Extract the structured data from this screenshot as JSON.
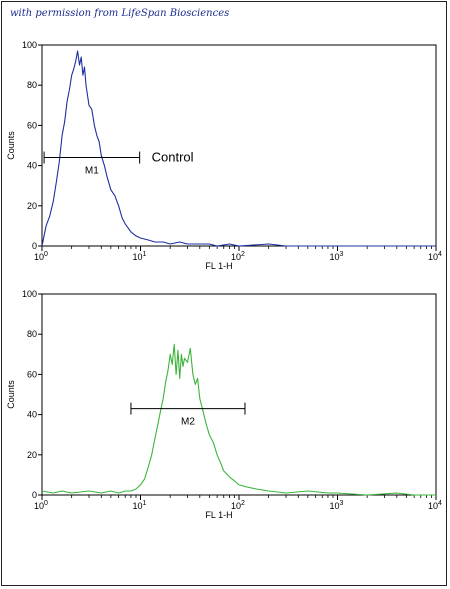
{
  "permission_note": "with permission from LifeSpan Biosciences",
  "chart_data": [
    {
      "type": "line",
      "xscale": "log",
      "xlim": [
        1,
        10000
      ],
      "ylim": [
        0,
        100
      ],
      "xlabel": "FL 1-H",
      "ylabel": "Counts",
      "yticks": [
        "0",
        "20",
        "40",
        "60",
        "80",
        "100"
      ],
      "xticks": [
        {
          "base": "10",
          "exp": "0"
        },
        {
          "base": "10",
          "exp": "1"
        },
        {
          "base": "10",
          "exp": "2"
        },
        {
          "base": "10",
          "exp": "3"
        },
        {
          "base": "10",
          "exp": "4"
        }
      ],
      "color": "#1f2fa0",
      "series": [
        {
          "x": [
            1.0,
            1.1,
            1.2,
            1.3,
            1.4,
            1.5,
            1.6,
            1.7,
            1.8,
            1.9,
            2.0,
            2.1,
            2.2,
            2.3,
            2.4,
            2.5,
            2.6,
            2.7,
            2.8,
            2.9,
            3.0,
            3.2,
            3.4,
            3.6,
            3.8,
            4.0,
            4.3,
            4.6,
            5.0,
            5.5,
            6.0,
            6.5,
            7.0,
            8.0,
            9.0,
            10,
            12,
            14,
            17,
            20,
            25,
            30,
            40,
            50,
            60,
            80,
            100,
            200,
            300,
            1000,
            10000
          ],
          "y": [
            0,
            10,
            15,
            22,
            32,
            42,
            55,
            62,
            72,
            78,
            85,
            88,
            92,
            97,
            90,
            94,
            85,
            89,
            80,
            75,
            70,
            68,
            60,
            55,
            52,
            45,
            40,
            34,
            28,
            25,
            20,
            14,
            11,
            7,
            5,
            4,
            3,
            2,
            2,
            1,
            2,
            1,
            1,
            1,
            0,
            1,
            0,
            1,
            0,
            0,
            0
          ]
        }
      ],
      "marker": {
        "label": "M1",
        "x": [
          1.05,
          9.8
        ],
        "y": 44
      },
      "annotation": "Control"
    },
    {
      "type": "line",
      "xscale": "log",
      "xlim": [
        1,
        10000
      ],
      "ylim": [
        0,
        100
      ],
      "xlabel": "FL 1-H",
      "ylabel": "Counts",
      "yticks": [
        "0",
        "20",
        "40",
        "60",
        "80",
        "100"
      ],
      "xticks": [
        {
          "base": "10",
          "exp": "0"
        },
        {
          "base": "10",
          "exp": "1"
        },
        {
          "base": "10",
          "exp": "2"
        },
        {
          "base": "10",
          "exp": "3"
        },
        {
          "base": "10",
          "exp": "4"
        }
      ],
      "color": "#3cb43c",
      "series": [
        {
          "x": [
            1.0,
            1.3,
            1.6,
            2,
            3,
            4,
            5,
            6,
            7,
            8,
            9,
            10,
            11,
            12,
            13,
            14,
            15,
            16,
            17,
            18,
            19,
            20,
            21,
            22,
            23,
            24,
            25,
            26,
            27,
            28,
            30,
            32,
            34,
            36,
            38,
            40,
            43,
            46,
            50,
            55,
            60,
            65,
            70,
            80,
            90,
            100,
            120,
            150,
            200,
            300,
            500,
            800,
            1000,
            2000,
            4000,
            6000,
            10000
          ],
          "y": [
            2,
            1,
            2,
            1,
            2,
            1,
            2,
            1,
            2,
            2,
            3,
            5,
            8,
            14,
            20,
            28,
            35,
            42,
            48,
            56,
            62,
            70,
            65,
            75,
            60,
            72,
            58,
            70,
            64,
            68,
            66,
            73,
            60,
            55,
            58,
            48,
            42,
            36,
            30,
            26,
            20,
            16,
            12,
            9,
            7,
            5,
            4,
            3,
            2,
            1,
            2,
            1,
            1,
            0,
            1,
            0,
            0
          ]
        }
      ],
      "marker": {
        "label": "M2",
        "x": [
          8,
          115
        ],
        "y": 43
      }
    }
  ]
}
